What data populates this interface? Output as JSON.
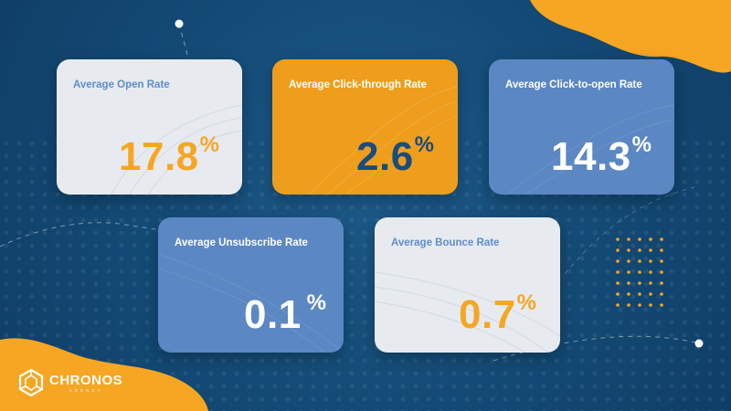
{
  "cards": [
    {
      "title": "Average Open Rate",
      "value": "17.8",
      "unit": "%"
    },
    {
      "title": "Average Click-through Rate",
      "value": "2.6",
      "unit": "%"
    },
    {
      "title": "Average Click-to-open Rate",
      "value": "14.3",
      "unit": "%"
    },
    {
      "title": "Average Unsubscribe Rate",
      "value": "0.1",
      "unit": "%"
    },
    {
      "title": "Average Bounce Rate",
      "value": "0.7",
      "unit": "%"
    }
  ],
  "brand": {
    "name": "CHRONOS",
    "sub": "AGENCY"
  },
  "colors": {
    "background": "#134a75",
    "accent_orange": "#f7a623",
    "card_light": "#e7ebf0",
    "card_gold": "#ee9e1c",
    "card_blue": "#5b87c3",
    "text_blue": "#5f8ccb",
    "text_navy": "#1a4c7c"
  }
}
